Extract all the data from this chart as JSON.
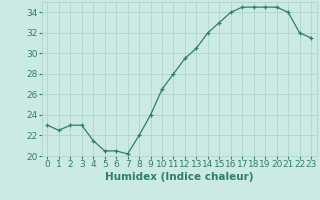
{
  "x": [
    0,
    1,
    2,
    3,
    4,
    5,
    6,
    7,
    8,
    9,
    10,
    11,
    12,
    13,
    14,
    15,
    16,
    17,
    18,
    19,
    20,
    21,
    22,
    23
  ],
  "y": [
    23,
    22.5,
    23,
    23,
    21.5,
    20.5,
    20.5,
    20.2,
    22,
    24,
    26.5,
    28,
    29.5,
    30.5,
    32,
    33,
    34,
    34.5,
    34.5,
    34.5,
    34.5,
    34,
    32,
    31.5
  ],
  "xlabel": "Humidex (Indice chaleur)",
  "ylim": [
    20,
    35
  ],
  "xlim": [
    -0.5,
    23.5
  ],
  "yticks": [
    20,
    22,
    24,
    26,
    28,
    30,
    32,
    34
  ],
  "xticks": [
    0,
    1,
    2,
    3,
    4,
    5,
    6,
    7,
    8,
    9,
    10,
    11,
    12,
    13,
    14,
    15,
    16,
    17,
    18,
    19,
    20,
    21,
    22,
    23
  ],
  "line_color": "#2e7d6e",
  "marker": "+",
  "bg_color": "#cceae4",
  "grid_color": "#aacfc8",
  "tick_color": "#2e7d6e",
  "label_color": "#2e7d6e",
  "font_size": 6.5,
  "xlabel_font_size": 7.5,
  "markersize": 3.5,
  "linewidth": 0.9
}
